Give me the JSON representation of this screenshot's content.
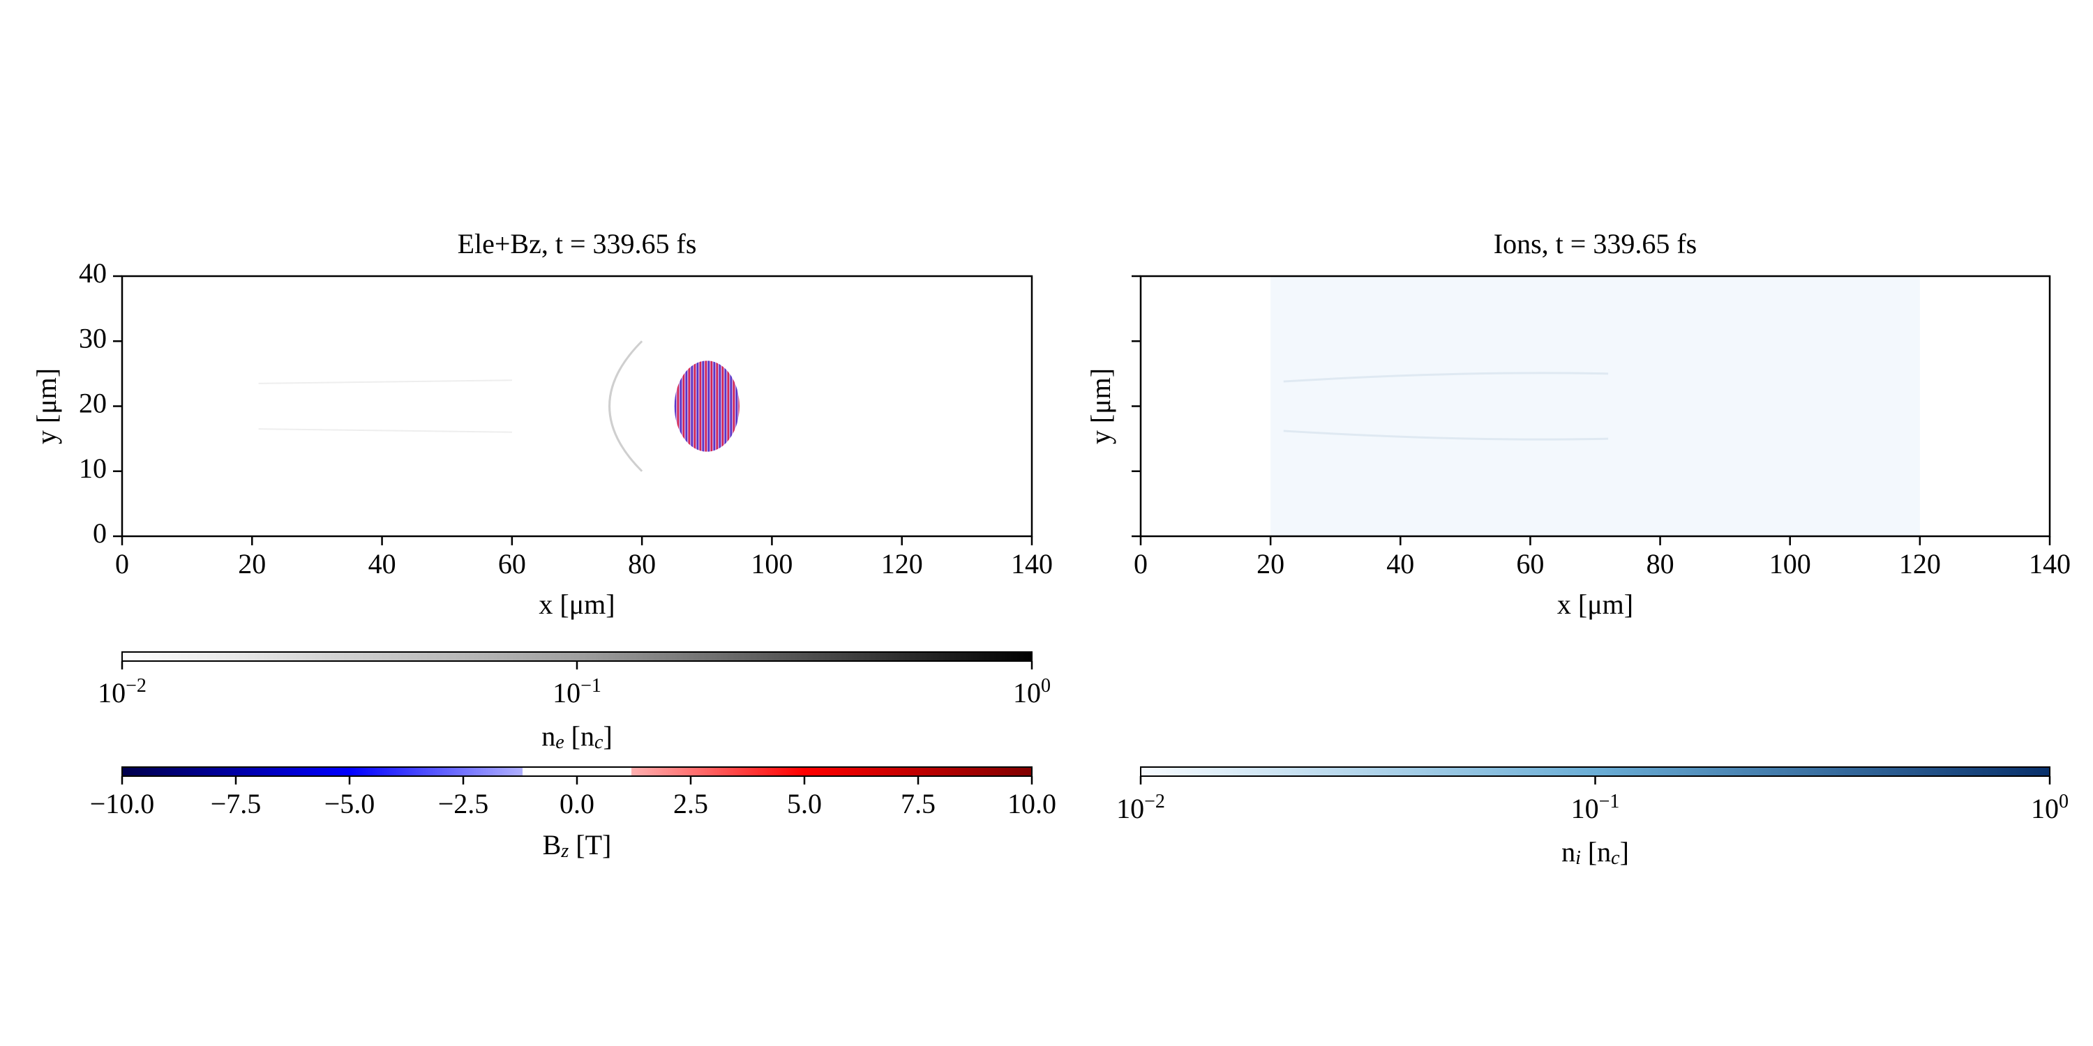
{
  "chart_data": [
    {
      "type": "heatmap",
      "title": "Ele+Bz, t = 339.65 fs",
      "x_label": "x [μm]",
      "y_label": "y [μm]",
      "xlim": [
        0,
        140
      ],
      "ylim": [
        0,
        40
      ],
      "xticks": [
        0,
        20,
        40,
        60,
        80,
        100,
        120,
        140
      ],
      "yticks": [
        0,
        10,
        20,
        30,
        40
      ],
      "show_ytick_labels": true,
      "pulse_x": [
        85,
        95
      ],
      "pulse_y": [
        13,
        27
      ],
      "colorbars": [
        {
          "label": [
            "n",
            "e",
            " [n",
            "c",
            "]"
          ],
          "scale": "log",
          "lim": [
            0.01,
            1
          ],
          "colormap": "gray_r",
          "ticks": [
            {
              "value": 0.01,
              "label": [
                "10",
                "−2"
              ]
            },
            {
              "value": 0.1,
              "label": [
                "10",
                "−1"
              ]
            },
            {
              "value": 1,
              "label": [
                "10",
                "0"
              ]
            }
          ]
        },
        {
          "label": [
            "B",
            "z",
            " [T]"
          ],
          "scale": "linear",
          "lim": [
            -10,
            10
          ],
          "colormap": "seismic",
          "ticks": [
            {
              "value": -10,
              "label": "−10.0"
            },
            {
              "value": -7.5,
              "label": "−7.5"
            },
            {
              "value": -5,
              "label": "−5.0"
            },
            {
              "value": -2.5,
              "label": "−2.5"
            },
            {
              "value": 0,
              "label": "0.0"
            },
            2.5,
            {
              "value": 5,
              "label": "5.0"
            },
            7.5,
            {
              "value": 10,
              "label": "10.0"
            }
          ]
        }
      ]
    },
    {
      "type": "heatmap",
      "title": "Ions, t = 339.65 fs",
      "x_label": "x [μm]",
      "y_label": "y [μm]",
      "xlim": [
        0,
        140
      ],
      "ylim": [
        0,
        40
      ],
      "xticks": [
        0,
        20,
        40,
        60,
        80,
        100,
        120,
        140
      ],
      "yticks": [
        0,
        10,
        20,
        30,
        40
      ],
      "show_ytick_labels": false,
      "ion_region_x": [
        20,
        120
      ],
      "colorbars": [
        {
          "label": [
            "n",
            "i",
            " [n",
            "c",
            "]"
          ],
          "scale": "log",
          "lim": [
            0.01,
            1
          ],
          "colormap": "Blues",
          "ticks": [
            {
              "value": 0.01,
              "label": [
                "10",
                "−2"
              ]
            },
            {
              "value": 0.1,
              "label": [
                "10",
                "−1"
              ]
            },
            {
              "value": 1,
              "label": [
                "10",
                "0"
              ]
            }
          ]
        }
      ]
    }
  ]
}
